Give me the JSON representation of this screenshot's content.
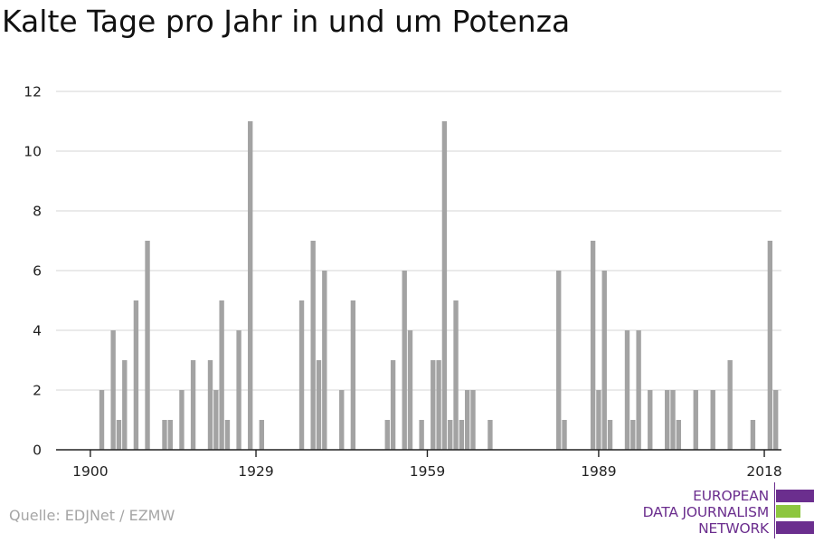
{
  "title": "Kalte Tage pro Jahr in und um Potenza",
  "source": "Quelle: EDJNet / EZMW",
  "logo": {
    "lines": [
      "EUROPEAN",
      "DATA JOURNALISM",
      "NETWORK"
    ],
    "colors": {
      "purple": "#6b2e8e",
      "green": "#8dc63f"
    }
  },
  "colors": {
    "bar": "#a3a3a3",
    "grid": "#dddddd",
    "axis": "#222222",
    "tick_text": "#222222"
  },
  "chart_data": {
    "type": "bar",
    "title": "Kalte Tage pro Jahr in und um Potenza",
    "xlabel": "",
    "ylabel": "",
    "xlim": [
      1894,
      2021
    ],
    "ylim": [
      0,
      12
    ],
    "x_ticks": [
      1900,
      1929,
      1959,
      1989,
      2018
    ],
    "y_ticks": [
      0,
      2,
      4,
      6,
      8,
      10,
      12
    ],
    "grid": true,
    "x": [
      1902,
      1904,
      1905,
      1906,
      1908,
      1910,
      1913,
      1914,
      1916,
      1918,
      1921,
      1922,
      1923,
      1924,
      1926,
      1928,
      1930,
      1937,
      1939,
      1940,
      1941,
      1944,
      1946,
      1952,
      1953,
      1955,
      1956,
      1958,
      1960,
      1961,
      1962,
      1963,
      1964,
      1965,
      1966,
      1967,
      1970,
      1982,
      1983,
      1988,
      1989,
      1990,
      1991,
      1994,
      1995,
      1996,
      1998,
      2001,
      2002,
      2003,
      2006,
      2009,
      2012,
      2016,
      2019,
      2020
    ],
    "values": [
      2,
      4,
      1,
      3,
      5,
      7,
      1,
      1,
      2,
      3,
      3,
      2,
      5,
      1,
      4,
      11,
      1,
      5,
      7,
      3,
      6,
      2,
      5,
      1,
      3,
      6,
      4,
      1,
      3,
      3,
      11,
      1,
      5,
      1,
      2,
      2,
      1,
      6,
      1,
      7,
      2,
      6,
      1,
      4,
      1,
      4,
      2,
      2,
      2,
      1,
      2,
      2,
      3,
      1,
      7,
      2
    ]
  }
}
